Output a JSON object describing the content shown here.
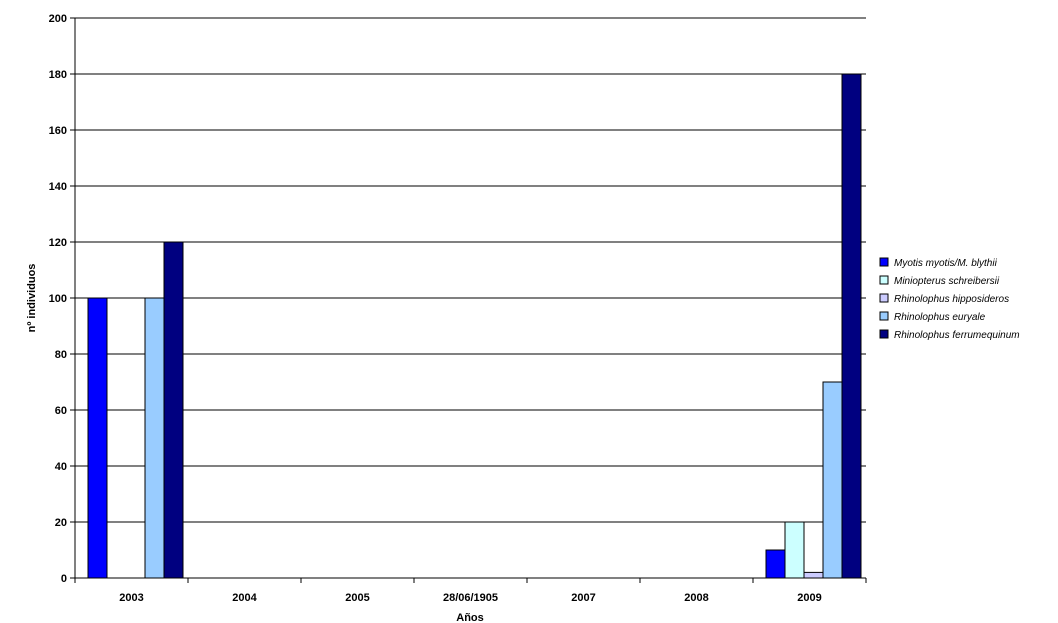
{
  "chart_data": {
    "type": "bar",
    "categories": [
      "2003",
      "2004",
      "2005",
      "28/06/1905",
      "2007",
      "2008",
      "2009"
    ],
    "xlabel": "Años",
    "ylabel": "nº individuos",
    "ylim": [
      0,
      200
    ],
    "ytick_step": 20,
    "grid": true,
    "legend_position": "right",
    "series": [
      {
        "name": "Myotis myotis/M. blythii",
        "color": "#0000ff",
        "values": [
          100,
          0,
          0,
          0,
          0,
          0,
          10
        ]
      },
      {
        "name": "Miniopterus schreibersii",
        "color": "#ccffff",
        "values": [
          0,
          0,
          0,
          0,
          0,
          0,
          20
        ]
      },
      {
        "name": "Rhinolophus hipposideros",
        "color": "#ccccff",
        "values": [
          0,
          0,
          0,
          0,
          0,
          0,
          2
        ]
      },
      {
        "name": "Rhinolophus euryale",
        "color": "#99ccff",
        "values": [
          100,
          0,
          0,
          0,
          0,
          0,
          70
        ]
      },
      {
        "name": "Rhinolophus ferrumequinum",
        "color": "#000080",
        "values": [
          120,
          0,
          0,
          0,
          0,
          0,
          180
        ]
      }
    ]
  }
}
